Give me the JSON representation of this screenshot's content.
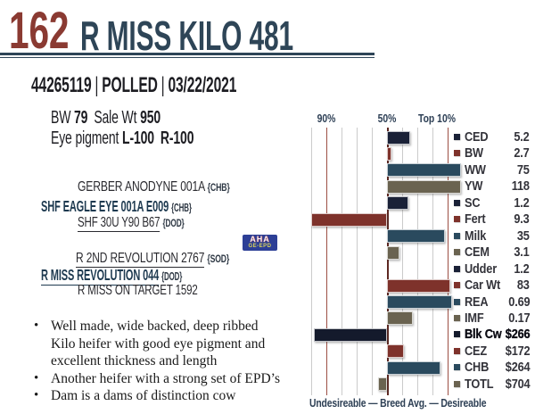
{
  "header": {
    "lot_number": "162",
    "animal_name": "R MISS KILO 481",
    "registration": "44265119",
    "separator": "|",
    "horn_status": "POLLED",
    "birth_date": "03/22/2021"
  },
  "stats": {
    "bw_label": "BW",
    "bw_value": "79",
    "sale_wt_label": "Sale Wt",
    "sale_wt_value": "950",
    "eye_pigment_label": "Eye pigment",
    "eye_left_value": "L-100",
    "eye_right_value": "R-100"
  },
  "pedigree": {
    "sire_sire": {
      "name": "GERBER ANODYNE 001A",
      "tag": "{CHB}"
    },
    "sire": {
      "name": "SHF EAGLE EYE 001A E009",
      "tag": "{CHB}"
    },
    "sire_dam": {
      "name": "SHF 30U Y90 B67",
      "tag": "{DOD}"
    },
    "dam_sire": {
      "name": "R 2ND REVOLUTION 2767",
      "tag": "{SOD}"
    },
    "dam": {
      "name": "R MISS REVOLUTION 044",
      "tag": "{DOD}"
    },
    "dam_dam": {
      "name": "R MISS ON TARGET 1592",
      "tag": ""
    }
  },
  "badge": {
    "line1": "AHA",
    "line2": "GE-EPD"
  },
  "notes": [
    [
      "Well made, wide backed, deep ribbed",
      "Kilo heifer with good eye pigment and",
      "excellent thickness and length"
    ],
    [
      "Another heifer with a strong set of EPD’s"
    ],
    [
      "Dam is a dams of distinction cow"
    ]
  ],
  "chart_data": {
    "type": "bar",
    "orientation": "horizontal",
    "description": "EPD percentile bar chart; bars anchored at breed average (50th percentile), right = desirable, left = undesirable",
    "axis_range_percentile": [
      100,
      0
    ],
    "gridline_every_percentile": 10,
    "axis_labels": [
      {
        "text": "90%",
        "percentile": 90
      },
      {
        "text": "50%",
        "percentile": 50
      },
      {
        "text": "Top 10%",
        "percentile": 10
      }
    ],
    "footer": "Undesireable — Breed Avg. —  Desireable",
    "line_colors": {
      "grid": "#cbcbcb",
      "percentile_90_10": "#9c4f44",
      "percentile_50": "#5e2822"
    },
    "rows": [
      {
        "label": "CED",
        "value": "5.2",
        "percentile": 35,
        "color": "#1a2137",
        "bold": false
      },
      {
        "label": "BW",
        "value": "2.7",
        "percentile": 47,
        "color": "#7e322b",
        "bold": false
      },
      {
        "label": "WW",
        "value": "75",
        "percentile": 1,
        "color": "#2a4a5e",
        "bold": false
      },
      {
        "label": "YW",
        "value": "118",
        "percentile": 1,
        "color": "#6a6350",
        "bold": false
      },
      {
        "label": "SC",
        "value": "1.2",
        "percentile": 36,
        "color": "#1a2137",
        "bold": false
      },
      {
        "label": "Fert",
        "value": "9.3",
        "percentile": 100,
        "color": "#7e322b",
        "bold": false
      },
      {
        "label": "Milk",
        "value": "35",
        "percentile": 12,
        "color": "#2a4a5e",
        "bold": false
      },
      {
        "label": "CEM",
        "value": "3.1",
        "percentile": 42,
        "color": "#6a6350",
        "bold": false
      },
      {
        "label": "Udder",
        "value": "1.2",
        "percentile": 50,
        "color": "#1a2137",
        "bold": false
      },
      {
        "label": "Car Wt",
        "value": "83",
        "percentile": 8,
        "color": "#7e322b",
        "bold": false
      },
      {
        "label": "REA",
        "value": "0.69",
        "percentile": 7,
        "color": "#2a4a5e",
        "bold": false
      },
      {
        "label": "IMF",
        "value": "0.17",
        "percentile": 33,
        "color": "#6a6350",
        "bold": false
      },
      {
        "label": "Blk Cw",
        "value": "$266",
        "percentile": 98,
        "color": "#141a2c",
        "bold": true
      },
      {
        "label": "CEZ",
        "value": "$172",
        "percentile": 39,
        "color": "#7e322b",
        "bold": false
      },
      {
        "label": "CHB",
        "value": "$264",
        "percentile": 15,
        "color": "#2a4a5e",
        "bold": false
      },
      {
        "label": "TOTL",
        "value": "$704",
        "percentile": 56,
        "color": "#6a6350",
        "bold": false
      }
    ]
  }
}
